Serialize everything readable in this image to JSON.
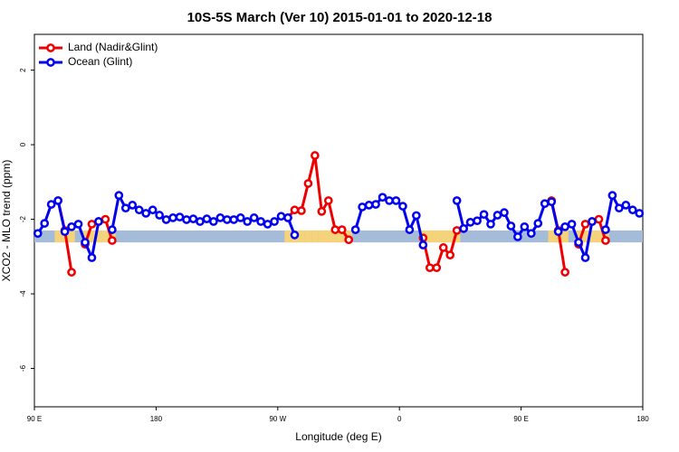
{
  "chart_data": {
    "type": "line",
    "title": "10S-5S March (Ver 10)   2015-01-01 to 2020-12-18",
    "x_label": "Longitude (deg E)",
    "y_label": "XCO2 - MLO trend (ppm)",
    "xlim": [
      90,
      540
    ],
    "xticks": [
      {
        "value": 90,
        "label": "90 E"
      },
      180,
      {
        "value": 270,
        "label": "90 W"
      },
      {
        "value": 360,
        "label": "0"
      },
      {
        "value": 450,
        "label": "90 E"
      },
      {
        "value": 540,
        "label": "180"
      }
    ],
    "ylim": [
      -7.03,
      2.96
    ],
    "yticks": [
      2,
      0,
      -2,
      -4,
      -6
    ],
    "legend": "top-left",
    "band": {
      "values": [
        -2.62,
        -2.3
      ],
      "color": "#a4bcd8",
      "land_color": "#f5d37a"
    },
    "x": [
      92.5,
      97.5,
      102.5,
      107.5,
      112.5,
      117.5,
      122.5,
      127.5,
      132.5,
      137.5,
      142.5,
      147.5,
      152.5,
      157.5,
      162.5,
      167.5,
      172.5,
      177.5,
      182.5,
      187.5,
      192.5,
      197.5,
      202.5,
      207.5,
      212.5,
      217.5,
      222.5,
      227.5,
      232.5,
      237.5,
      242.5,
      247.5,
      252.5,
      257.5,
      262.5,
      267.5,
      272.5,
      277.5,
      282.5,
      287.5,
      292.5,
      297.5,
      302.5,
      307.5,
      312.5,
      317.5,
      322.5,
      327.5,
      332.5,
      337.5,
      342.5,
      347.5,
      352.5,
      357.5,
      362.5,
      367.5,
      372.5,
      377.5,
      382.5,
      387.5,
      392.5,
      397.5,
      402.5,
      407.5,
      412.5,
      417.5,
      422.5,
      427.5,
      432.5,
      437.5,
      442.5,
      447.5,
      452.5,
      457.5,
      462.5,
      467.5,
      472.5,
      477.5,
      482.5,
      487.5,
      492.5,
      497.5,
      502.5,
      507.5,
      512.5,
      517.5,
      522.5,
      527.5,
      532.5,
      537.5
    ],
    "series": [
      {
        "name": "Land (Nadir&Glint)",
        "color": "#ee0000",
        "values": [
          null,
          null,
          null,
          -1.5,
          -2.3,
          -3.42,
          null,
          -2.67,
          -2.13,
          -2.06,
          -2.0,
          -2.57,
          null,
          null,
          null,
          null,
          null,
          null,
          null,
          null,
          null,
          null,
          null,
          null,
          null,
          null,
          null,
          null,
          null,
          null,
          null,
          null,
          null,
          null,
          null,
          null,
          null,
          -1.96,
          -1.75,
          -1.77,
          -1.04,
          -0.29,
          -1.79,
          -1.5,
          -2.28,
          -2.28,
          -2.55,
          null,
          null,
          null,
          null,
          null,
          null,
          null,
          null,
          null,
          null,
          -2.5,
          -3.3,
          -3.3,
          -2.76,
          -2.96,
          -2.3,
          null,
          null,
          null,
          null,
          null,
          null,
          null,
          null,
          null,
          null,
          null,
          null,
          null,
          -1.5,
          -2.3,
          -3.42,
          null,
          -2.67,
          -2.13,
          -2.06,
          -2.0,
          -2.57,
          null,
          null,
          null,
          null,
          null
        ]
      },
      {
        "name": "Ocean (Glint)",
        "color": "#0000ee",
        "values": [
          -2.38,
          -2.11,
          -1.6,
          -1.5,
          -2.33,
          -2.2,
          -2.13,
          -2.62,
          -3.03,
          -2.06,
          null,
          -2.28,
          -1.36,
          -1.7,
          -1.62,
          -1.75,
          -1.84,
          -1.75,
          -1.89,
          -2.01,
          -1.96,
          -1.94,
          -2.01,
          -1.99,
          -2.06,
          -1.99,
          -2.06,
          -1.96,
          -2.01,
          -2.01,
          -1.96,
          -2.06,
          -1.96,
          -2.06,
          -2.13,
          -2.06,
          -1.92,
          -1.96,
          -2.42,
          null,
          null,
          null,
          null,
          null,
          null,
          null,
          null,
          -2.28,
          -1.67,
          -1.62,
          -1.6,
          -1.41,
          -1.5,
          -1.5,
          -1.65,
          -2.28,
          -1.9,
          -2.69,
          null,
          null,
          null,
          null,
          -1.5,
          -2.25,
          -2.08,
          -2.04,
          -1.87,
          -2.13,
          -1.89,
          -1.82,
          -2.18,
          -2.47,
          -2.2,
          -2.38,
          -2.11,
          -1.58,
          -1.53,
          -2.33,
          -2.2,
          -2.13,
          -2.62,
          -3.03,
          -2.06,
          null,
          -2.28,
          -1.36,
          -1.7,
          -1.62,
          -1.75,
          -1.84
        ]
      }
    ]
  }
}
